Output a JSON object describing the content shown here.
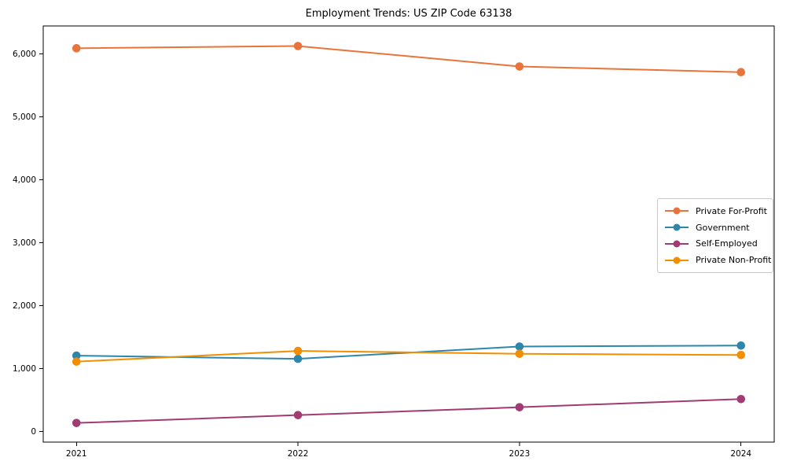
{
  "chart_data": {
    "type": "line",
    "title": "Employment Trends: US ZIP Code 63138",
    "xlabel": "",
    "ylabel": "",
    "x": [
      2021,
      2022,
      2023,
      2024
    ],
    "x_tick_labels": [
      "2021",
      "2022",
      "2023",
      "2024"
    ],
    "y_ticks": [
      0,
      1000,
      2000,
      3000,
      4000,
      5000,
      6000
    ],
    "y_tick_labels": [
      "0",
      "1,000",
      "2,000",
      "3,000",
      "4,000",
      "5,000",
      "6,000"
    ],
    "xlim": [
      2020.85,
      2024.15
    ],
    "ylim": [
      -169,
      6444
    ],
    "grid": false,
    "legend_position": "center right",
    "frame_color": "#000000",
    "series": [
      {
        "name": "Private For-Profit",
        "color": "#E8743B",
        "values": [
          6090,
          6125,
          5800,
          5710
        ]
      },
      {
        "name": "Government",
        "color": "#2E86AB",
        "values": [
          1205,
          1155,
          1350,
          1365
        ]
      },
      {
        "name": "Self-Employed",
        "color": "#A23B72",
        "values": [
          135,
          260,
          385,
          515
        ]
      },
      {
        "name": "Private Non-Profit",
        "color": "#F18F01",
        "values": [
          1110,
          1280,
          1235,
          1215
        ]
      }
    ]
  }
}
